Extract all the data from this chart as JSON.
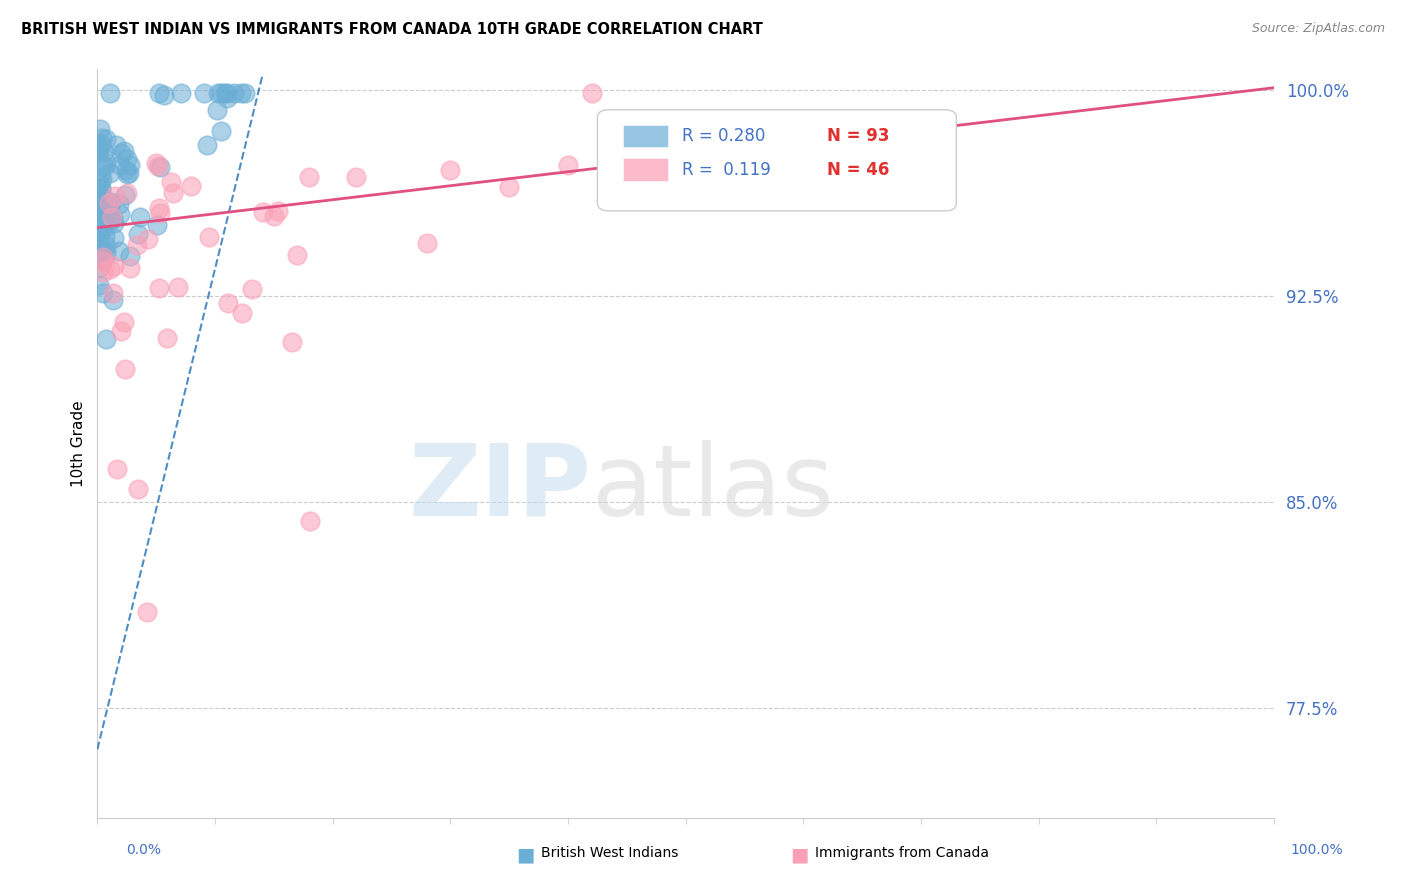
{
  "title": "BRITISH WEST INDIAN VS IMMIGRANTS FROM CANADA 10TH GRADE CORRELATION CHART",
  "source": "Source: ZipAtlas.com",
  "ylabel": "10th Grade",
  "blue_R": 0.28,
  "blue_N": 93,
  "pink_R": 0.119,
  "pink_N": 46,
  "blue_color": "#6baed6",
  "pink_color": "#fa9fb5",
  "blue_line_color": "#2171b5",
  "pink_line_color": "#e05080",
  "ytick_color": "#4472c4",
  "xlim": [
    0.0,
    1.0
  ],
  "ylim": [
    0.735,
    1.008
  ],
  "yticks": [
    0.775,
    0.85,
    0.925,
    1.0
  ],
  "ytick_labels": [
    "77.5%",
    "85.0%",
    "92.5%",
    "100.0%"
  ],
  "blue_line_x0": 0.0,
  "blue_line_y0": 0.76,
  "blue_line_x1": 0.14,
  "blue_line_y1": 1.005,
  "pink_line_x0": 0.0,
  "pink_line_y0": 0.95,
  "pink_line_x1": 1.0,
  "pink_line_y1": 1.001
}
